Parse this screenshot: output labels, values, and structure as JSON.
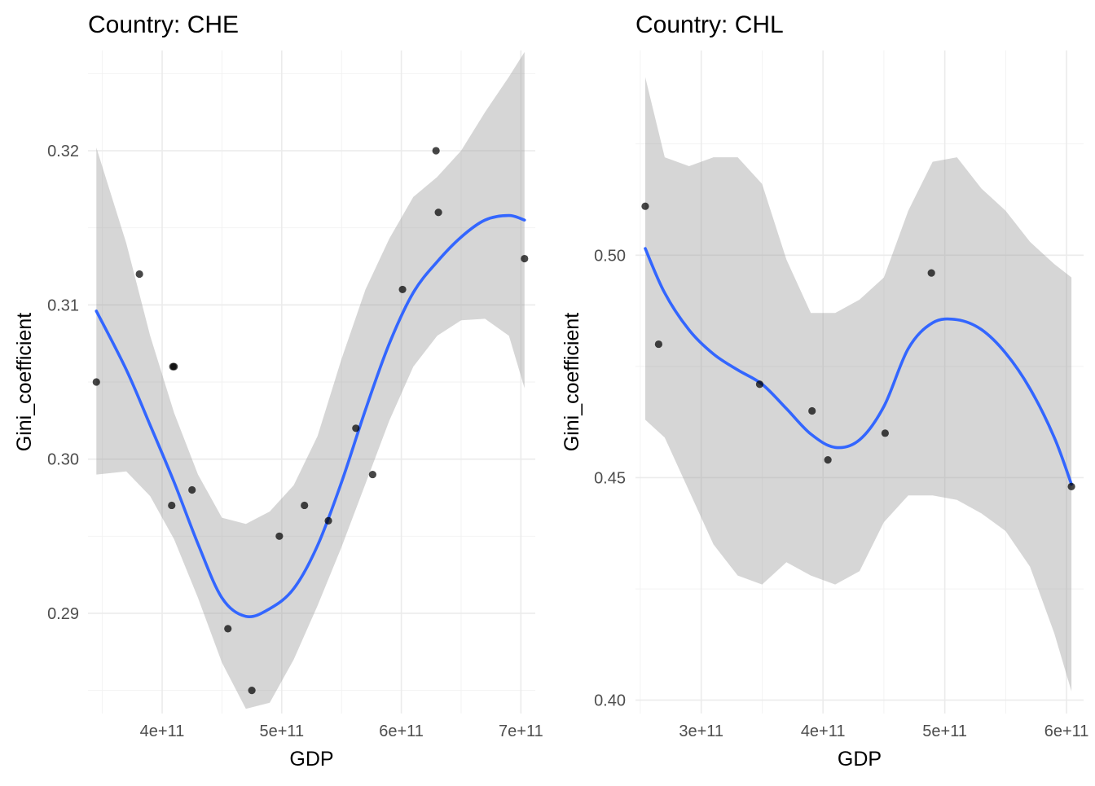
{
  "chart_data": [
    {
      "type": "scatter",
      "title": "Country: CHE",
      "xlabel": "GDP",
      "ylabel": "Gini_coefficient",
      "xlim": [
        338000000000,
        712000000000
      ],
      "ylim": [
        0.2835,
        0.3265
      ],
      "x_ticks": [
        {
          "value": 400000000000,
          "label": "4e+11"
        },
        {
          "value": 500000000000,
          "label": "5e+11"
        },
        {
          "value": 600000000000,
          "label": "6e+11"
        },
        {
          "value": 700000000000,
          "label": "7e+11"
        }
      ],
      "y_ticks": [
        {
          "value": 0.29,
          "label": "0.29"
        },
        {
          "value": 0.3,
          "label": "0.30"
        },
        {
          "value": 0.31,
          "label": "0.31"
        },
        {
          "value": 0.32,
          "label": "0.32"
        }
      ],
      "grid": true,
      "points": [
        {
          "x": 345000000000,
          "y": 0.305
        },
        {
          "x": 381000000000,
          "y": 0.312
        },
        {
          "x": 408000000000,
          "y": 0.297
        },
        {
          "x": 409000000000,
          "y": 0.306
        },
        {
          "x": 410000000000,
          "y": 0.306
        },
        {
          "x": 425000000000,
          "y": 0.298
        },
        {
          "x": 455000000000,
          "y": 0.289
        },
        {
          "x": 475000000000,
          "y": 0.285
        },
        {
          "x": 498000000000,
          "y": 0.295
        },
        {
          "x": 519000000000,
          "y": 0.297
        },
        {
          "x": 539000000000,
          "y": 0.296
        },
        {
          "x": 562000000000,
          "y": 0.302
        },
        {
          "x": 576000000000,
          "y": 0.299
        },
        {
          "x": 601000000000,
          "y": 0.311
        },
        {
          "x": 629000000000,
          "y": 0.32
        },
        {
          "x": 631000000000,
          "y": 0.316
        },
        {
          "x": 703000000000,
          "y": 0.313
        }
      ],
      "smooth": {
        "x": [
          345000000000,
          370000000000,
          390000000000,
          410000000000,
          430000000000,
          450000000000,
          470000000000,
          490000000000,
          510000000000,
          530000000000,
          550000000000,
          570000000000,
          590000000000,
          610000000000,
          630000000000,
          650000000000,
          670000000000,
          690000000000,
          703000000000
        ],
        "y": [
          0.3096,
          0.3058,
          0.3022,
          0.2985,
          0.2945,
          0.291,
          0.2898,
          0.2903,
          0.2916,
          0.2944,
          0.2985,
          0.3032,
          0.3075,
          0.3108,
          0.3128,
          0.3144,
          0.3155,
          0.3158,
          0.3155
        ],
        "lower": [
          0.299,
          0.2992,
          0.2976,
          0.2948,
          0.291,
          0.2868,
          0.2838,
          0.2842,
          0.287,
          0.2905,
          0.2943,
          0.2984,
          0.3025,
          0.306,
          0.308,
          0.309,
          0.3091,
          0.308,
          0.3046
        ],
        "upper": [
          0.3202,
          0.314,
          0.308,
          0.303,
          0.299,
          0.2962,
          0.2958,
          0.2966,
          0.2983,
          0.3015,
          0.3065,
          0.311,
          0.3143,
          0.317,
          0.3183,
          0.32,
          0.3225,
          0.3248,
          0.3264
        ]
      }
    },
    {
      "type": "scatter",
      "title": "Country: CHL",
      "xlabel": "GDP",
      "ylabel": "Gini_coefficient",
      "xlim": [
        246000000000,
        614000000000
      ],
      "ylim": [
        0.397,
        0.546
      ],
      "x_ticks": [
        {
          "value": 300000000000,
          "label": "3e+11"
        },
        {
          "value": 400000000000,
          "label": "4e+11"
        },
        {
          "value": 500000000000,
          "label": "5e+11"
        },
        {
          "value": 600000000000,
          "label": "6e+11"
        }
      ],
      "y_ticks": [
        {
          "value": 0.4,
          "label": "0.40"
        },
        {
          "value": 0.45,
          "label": "0.45"
        },
        {
          "value": 0.5,
          "label": "0.50"
        }
      ],
      "grid": true,
      "points": [
        {
          "x": 254000000000,
          "y": 0.511
        },
        {
          "x": 265000000000,
          "y": 0.48
        },
        {
          "x": 348000000000,
          "y": 0.471
        },
        {
          "x": 391000000000,
          "y": 0.465
        },
        {
          "x": 404000000000,
          "y": 0.454
        },
        {
          "x": 451000000000,
          "y": 0.46
        },
        {
          "x": 489000000000,
          "y": 0.496
        },
        {
          "x": 604000000000,
          "y": 0.448
        }
      ],
      "smooth": {
        "x": [
          254000000000,
          270000000000,
          290000000000,
          310000000000,
          330000000000,
          350000000000,
          370000000000,
          390000000000,
          410000000000,
          430000000000,
          450000000000,
          470000000000,
          490000000000,
          510000000000,
          530000000000,
          550000000000,
          570000000000,
          590000000000,
          604000000000
        ],
        "y": [
          0.5015,
          0.4915,
          0.4832,
          0.4778,
          0.4742,
          0.471,
          0.4655,
          0.4598,
          0.4568,
          0.4585,
          0.466,
          0.479,
          0.4848,
          0.4855,
          0.4833,
          0.478,
          0.47,
          0.459,
          0.4485
        ],
        "lower": [
          0.463,
          0.459,
          0.447,
          0.435,
          0.428,
          0.426,
          0.431,
          0.428,
          0.426,
          0.429,
          0.44,
          0.446,
          0.446,
          0.445,
          0.442,
          0.438,
          0.43,
          0.415,
          0.402
        ],
        "upper": [
          0.54,
          0.522,
          0.52,
          0.522,
          0.522,
          0.516,
          0.499,
          0.487,
          0.487,
          0.49,
          0.495,
          0.51,
          0.521,
          0.522,
          0.515,
          0.51,
          0.503,
          0.498,
          0.495
        ]
      }
    }
  ]
}
